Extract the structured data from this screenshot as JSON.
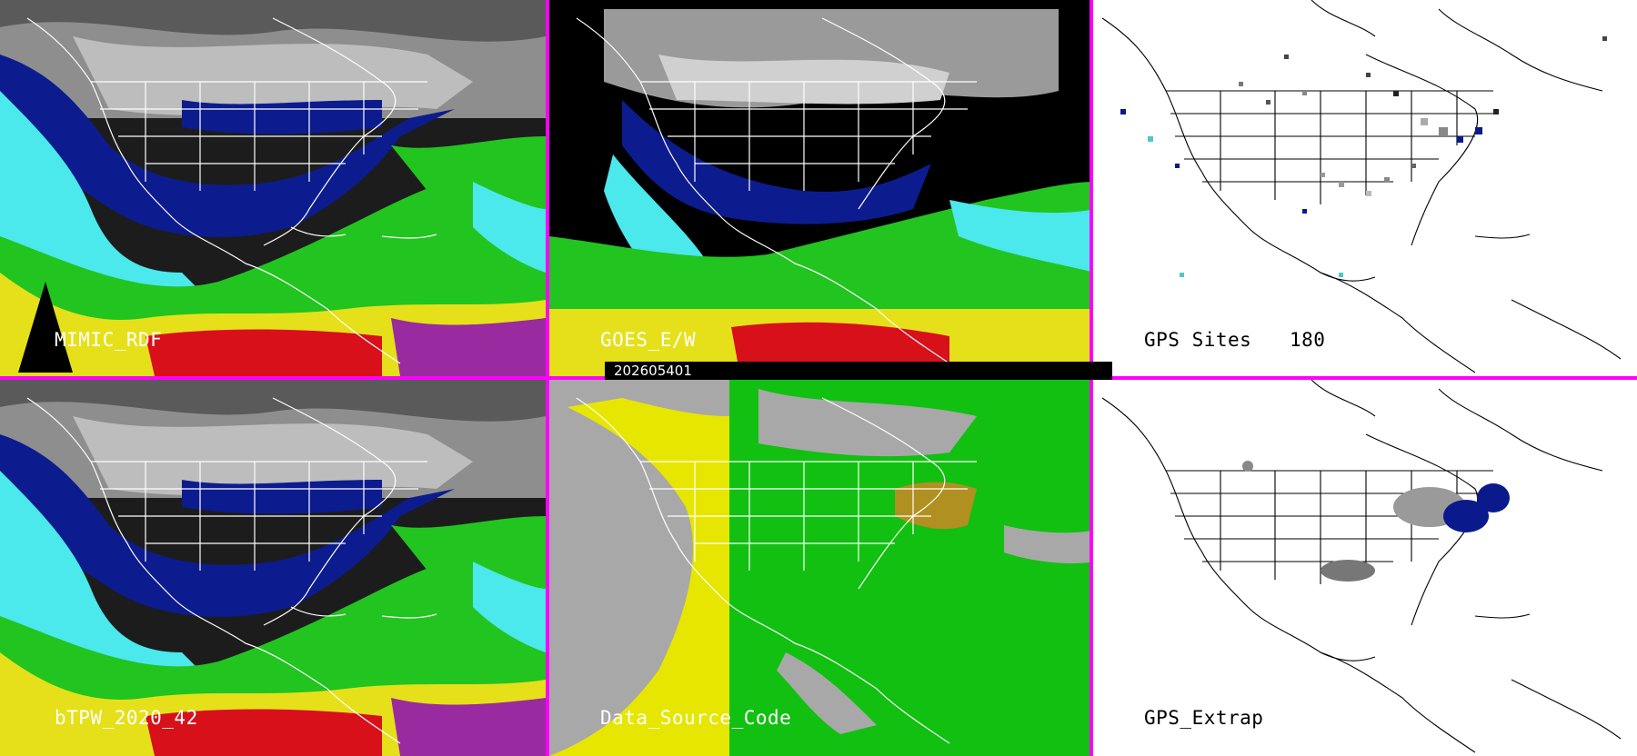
{
  "panels": {
    "mimic_rdf": {
      "label": "MIMIC_RDF"
    },
    "goes_ew": {
      "label": "GOES_E/W"
    },
    "gps_sites": {
      "label": "GPS Sites",
      "count": "180"
    },
    "btpw": {
      "label": "bTPW_2020_42"
    },
    "data_source_code": {
      "label": "Data_Source_Code"
    },
    "gps_extrap": {
      "label": "GPS_Extrap"
    }
  },
  "timestamp": "202605401",
  "colors": {
    "separator": "#ff00ff",
    "tpw_grey": "#8a8a8a",
    "tpw_navy": "#0a1a8c",
    "tpw_cyan": "#4be8ec",
    "tpw_green": "#22c41f",
    "tpw_yellow": "#e6e01a",
    "tpw_red": "#d8101a",
    "source_yellow": "#e6e600",
    "source_green": "#11c011",
    "source_grey": "#a8a8a8",
    "source_olive": "#b09020"
  },
  "icons": [
    "north-america-map",
    "state-boundaries",
    "gps-site-markers"
  ]
}
